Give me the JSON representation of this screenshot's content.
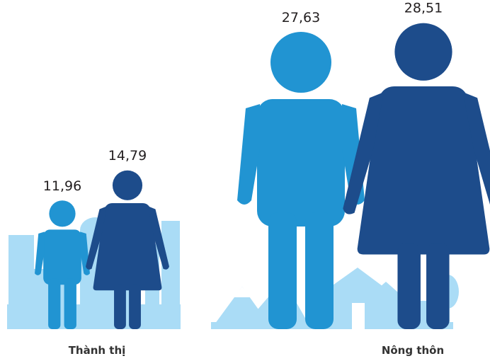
{
  "chart_data": {
    "type": "pictogram",
    "categories": [
      "Thành thị",
      "Nông thôn"
    ],
    "series": [
      {
        "color": "#2194d2",
        "values": [
          11.96,
          27.63
        ],
        "value_labels": [
          "11,96",
          "27,63"
        ]
      },
      {
        "color": "#1d4c8b",
        "values": [
          14.79,
          28.51
        ],
        "value_labels": [
          "14,79",
          "28,51"
        ]
      }
    ]
  }
}
